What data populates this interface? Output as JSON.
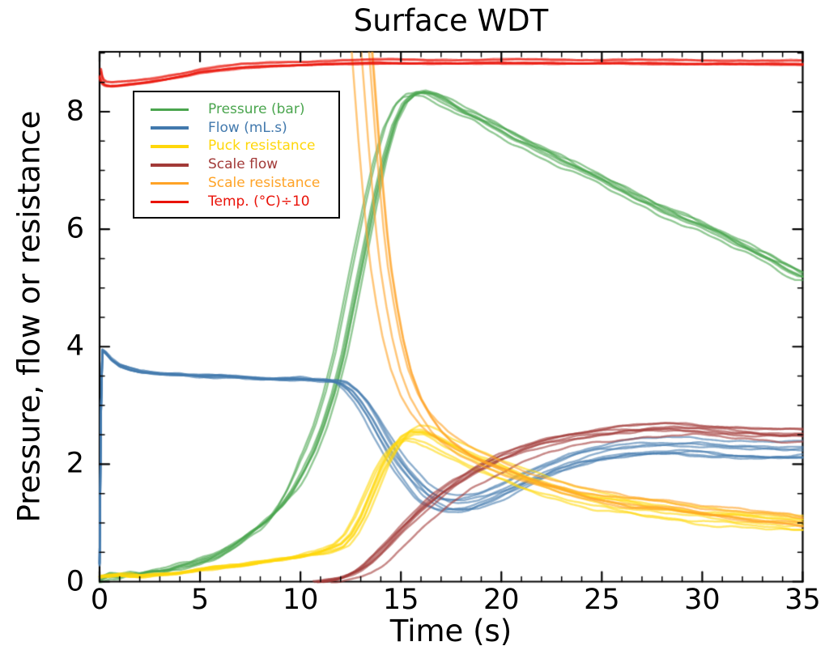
{
  "chart_data": {
    "type": "line",
    "title": "Surface WDT",
    "xlabel": "Time (s)",
    "ylabel": "Pressure, flow or resistance",
    "xlim": [
      0,
      35
    ],
    "ylim": [
      0,
      9.02
    ],
    "x_major_ticks": [
      0,
      5,
      10,
      15,
      20,
      25,
      30,
      35
    ],
    "x_minor_step": 1,
    "y_major_ticks": [
      0,
      2,
      4,
      6,
      8
    ],
    "y_minor_step": 0.5,
    "grid": false,
    "legend_position": "upper-left",
    "axis_color": "#000000",
    "series": [
      {
        "name": "Pressure (bar)",
        "color": "#4aa54e",
        "runs": 7,
        "alpha": 0.6,
        "lw": 2.4,
        "noise": 0.045,
        "y_spread": 0.06,
        "x_jitter": 0.4,
        "x_jitter_from": 8,
        "x": [
          0,
          0.5,
          1,
          1.5,
          2,
          2.5,
          3,
          3.5,
          4,
          4.5,
          5,
          5.5,
          6,
          6.5,
          7,
          7.5,
          8,
          8.5,
          9,
          9.5,
          10,
          10.5,
          11,
          11.5,
          12,
          12.5,
          13,
          13.5,
          14,
          14.5,
          15,
          15.5,
          16,
          16.5,
          17,
          17.5,
          18,
          19,
          20,
          21,
          22,
          23,
          24,
          25,
          26,
          27,
          28,
          29,
          30,
          31,
          32,
          33,
          34,
          35
        ],
        "y": [
          0.05,
          0.12,
          0.1,
          0.13,
          0.12,
          0.15,
          0.17,
          0.2,
          0.24,
          0.28,
          0.33,
          0.4,
          0.48,
          0.58,
          0.7,
          0.82,
          0.95,
          1.1,
          1.3,
          1.55,
          1.85,
          2.2,
          2.65,
          3.2,
          3.9,
          4.75,
          5.6,
          6.45,
          7.2,
          7.8,
          8.15,
          8.3,
          8.32,
          8.28,
          8.2,
          8.1,
          8.0,
          7.85,
          7.68,
          7.5,
          7.33,
          7.16,
          6.99,
          6.82,
          6.66,
          6.49,
          6.33,
          6.2,
          6.04,
          5.87,
          5.7,
          5.54,
          5.37,
          5.2
        ]
      },
      {
        "name": "Flow (mL.s)",
        "color": "#4279ad",
        "runs": 8,
        "alpha": 0.6,
        "lw": 2.4,
        "noise": 0.032,
        "y_spread": 0.18,
        "spread_from": 13,
        "x_jitter": 0.45,
        "x_jitter_from": 10,
        "x": [
          0,
          0.1,
          0.3,
          0.6,
          1,
          1.5,
          2,
          2.5,
          3,
          4,
          5,
          6,
          7,
          8,
          9,
          10,
          10.5,
          11,
          11.5,
          12,
          12.5,
          13,
          13.5,
          14,
          14.5,
          15,
          15.5,
          16,
          16.5,
          17,
          17.5,
          18,
          18.5,
          19,
          20,
          21,
          22,
          23,
          24,
          25,
          26,
          27,
          28,
          29,
          30,
          31,
          32,
          33,
          34,
          35
        ],
        "y": [
          0.3,
          3.95,
          3.9,
          3.78,
          3.68,
          3.62,
          3.58,
          3.56,
          3.54,
          3.52,
          3.5,
          3.5,
          3.48,
          3.46,
          3.45,
          3.45,
          3.44,
          3.43,
          3.42,
          3.38,
          3.25,
          3.05,
          2.8,
          2.5,
          2.22,
          1.98,
          1.78,
          1.6,
          1.48,
          1.4,
          1.37,
          1.37,
          1.4,
          1.46,
          1.6,
          1.77,
          1.93,
          2.07,
          2.17,
          2.25,
          2.3,
          2.33,
          2.35,
          2.35,
          2.33,
          2.3,
          2.28,
          2.27,
          2.27,
          2.28
        ]
      },
      {
        "name": "Puck resistance",
        "color": "#ffd70a",
        "runs": 8,
        "alpha": 0.6,
        "lw": 2.5,
        "noise": 0.035,
        "y_spread": 0.15,
        "spread_from": 12.5,
        "x_jitter": 0.45,
        "x_jitter_from": 9,
        "x": [
          0,
          0.5,
          1,
          2,
          3,
          4,
          5,
          6,
          7,
          8,
          9,
          10,
          10.5,
          11,
          11.5,
          12,
          12.5,
          13,
          13.5,
          14,
          14.5,
          15,
          15.5,
          16,
          16.5,
          17,
          18,
          19,
          20,
          21,
          22,
          23,
          24,
          25,
          26,
          28,
          30,
          32,
          34,
          35
        ],
        "y": [
          0.08,
          0.1,
          0.12,
          0.1,
          0.12,
          0.15,
          0.2,
          0.24,
          0.28,
          0.33,
          0.38,
          0.44,
          0.47,
          0.5,
          0.55,
          0.62,
          0.8,
          1.1,
          1.5,
          1.9,
          2.2,
          2.42,
          2.52,
          2.52,
          2.45,
          2.35,
          2.18,
          2.02,
          1.88,
          1.75,
          1.63,
          1.53,
          1.44,
          1.36,
          1.3,
          1.2,
          1.12,
          1.06,
          1.0,
          0.98
        ]
      },
      {
        "name": "Scale flow",
        "color": "#a23a38",
        "runs": 7,
        "alpha": 0.6,
        "lw": 2.5,
        "noise": 0.03,
        "y_spread": 0.12,
        "spread_from": 13,
        "x_jitter": 0.55,
        "x": [
          11,
          11.5,
          12,
          12.5,
          13,
          13.5,
          14,
          14.5,
          15,
          15.5,
          16,
          17,
          18,
          19,
          20,
          21,
          22,
          23,
          24,
          25,
          26,
          27,
          28,
          29,
          30,
          31,
          32,
          33,
          34,
          35
        ],
        "y": [
          0.0,
          0.02,
          0.05,
          0.1,
          0.18,
          0.3,
          0.45,
          0.62,
          0.8,
          0.98,
          1.15,
          1.45,
          1.7,
          1.9,
          2.07,
          2.2,
          2.32,
          2.4,
          2.47,
          2.52,
          2.56,
          2.58,
          2.6,
          2.6,
          2.58,
          2.56,
          2.54,
          2.52,
          2.5,
          2.5
        ]
      },
      {
        "name": "Scale resistance",
        "color": "#ffa326",
        "runs": 5,
        "alpha": 0.62,
        "lw": 2.5,
        "noise": 0.03,
        "y_spread": 0.1,
        "spread_from": 14,
        "x_jitter": 0.8,
        "x": [
          13,
          13.2,
          13.4,
          13.6,
          13.8,
          14,
          14.3,
          14.6,
          15,
          15.5,
          16,
          16.5,
          17,
          18,
          19,
          20,
          21,
          22,
          23,
          24,
          25,
          26,
          28,
          30,
          32,
          34,
          35
        ],
        "y": [
          9.3,
          8.4,
          7.5,
          6.7,
          5.95,
          5.35,
          4.7,
          4.15,
          3.6,
          3.15,
          2.85,
          2.62,
          2.45,
          2.22,
          2.05,
          1.9,
          1.78,
          1.67,
          1.57,
          1.49,
          1.42,
          1.35,
          1.3,
          1.2,
          1.12,
          1.06,
          1.0
        ]
      },
      {
        "name": "Temp. (°C)÷10",
        "color": "#e91208",
        "runs": 6,
        "alpha": 0.55,
        "lw": 2.7,
        "noise": 0.013,
        "y_spread": 0.04,
        "x_jitter": 0.1,
        "x": [
          0,
          0.05,
          0.15,
          0.3,
          0.6,
          1,
          1.5,
          2,
          2.5,
          3,
          3.5,
          4,
          4.5,
          5,
          6,
          7,
          8,
          9,
          10,
          12,
          14,
          16,
          18,
          20,
          22,
          24,
          26,
          28,
          30,
          32,
          34,
          35
        ],
        "y": [
          8.8,
          8.62,
          8.52,
          8.48,
          8.47,
          8.48,
          8.5,
          8.52,
          8.54,
          8.57,
          8.6,
          8.63,
          8.66,
          8.7,
          8.74,
          8.78,
          8.8,
          8.82,
          8.83,
          8.85,
          8.86,
          8.86,
          8.86,
          8.86,
          8.86,
          8.86,
          8.86,
          8.85,
          8.85,
          8.85,
          8.84,
          8.84
        ]
      }
    ]
  }
}
